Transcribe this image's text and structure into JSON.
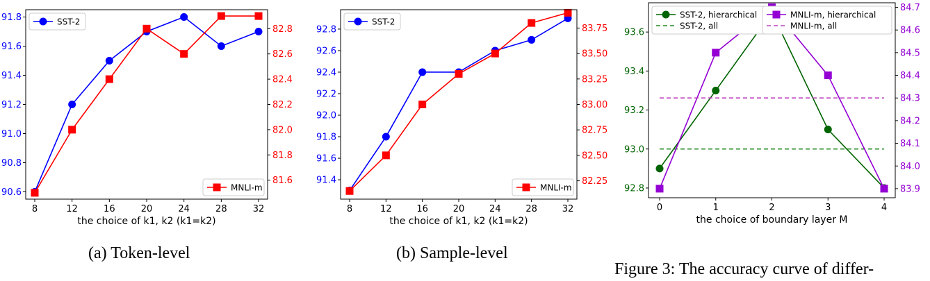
{
  "chart_data": [
    {
      "type": "line",
      "caption": "(a)  Token-level",
      "xlabel": "the choice of k1, k2 (k1=k2)",
      "x": [
        8,
        12,
        16,
        20,
        24,
        28,
        32
      ],
      "x_ticks": [
        "8",
        "12",
        "16",
        "20",
        "24",
        "28",
        "32"
      ],
      "y_left": {
        "lim": [
          90.55,
          91.85
        ],
        "ticks": [
          "90.6",
          "90.8",
          "91.0",
          "91.2",
          "91.4",
          "91.6",
          "91.8"
        ],
        "color": "#0000ff"
      },
      "y_right": {
        "lim": [
          81.45,
          82.95
        ],
        "ticks": [
          "81.6",
          "81.8",
          "82.0",
          "82.2",
          "82.4",
          "82.6",
          "82.8"
        ],
        "color": "#ff0000"
      },
      "series": [
        {
          "name": "SST-2",
          "axis": "left",
          "color": "#0000ff",
          "marker": "circle",
          "style": "solid",
          "values": [
            90.6,
            91.2,
            91.5,
            91.7,
            91.8,
            91.6,
            91.7
          ]
        },
        {
          "name": "MNLI-m",
          "axis": "right",
          "color": "#ff0000",
          "marker": "square",
          "style": "solid",
          "values": [
            81.5,
            82.0,
            82.4,
            82.8,
            82.6,
            82.9,
            82.9
          ]
        }
      ],
      "legends": [
        {
          "placement": "upper-left",
          "series": [
            "SST-2"
          ]
        },
        {
          "placement": "lower-right",
          "series": [
            "MNLI-m"
          ]
        }
      ]
    },
    {
      "type": "line",
      "caption": "(b)  Sample-level",
      "xlabel": "the choice of k1, k2 (k1=k2)",
      "x": [
        8,
        12,
        16,
        20,
        24,
        28,
        32
      ],
      "x_ticks": [
        "8",
        "12",
        "16",
        "20",
        "24",
        "28",
        "32"
      ],
      "y_left": {
        "lim": [
          91.22,
          92.98
        ],
        "ticks": [
          "91.4",
          "91.6",
          "91.8",
          "92.0",
          "92.2",
          "92.4",
          "92.6",
          "92.8"
        ],
        "color": "#0000ff"
      },
      "y_right": {
        "lim": [
          82.07,
          83.93
        ],
        "ticks": [
          "82.25",
          "82.50",
          "82.75",
          "83.00",
          "83.25",
          "83.50",
          "83.75"
        ],
        "color": "#ff0000"
      },
      "series": [
        {
          "name": "SST-2",
          "axis": "left",
          "color": "#0000ff",
          "marker": "circle",
          "style": "solid",
          "values": [
            91.3,
            91.8,
            92.4,
            92.4,
            92.6,
            92.7,
            92.9
          ]
        },
        {
          "name": "MNLI-m",
          "axis": "right",
          "color": "#ff0000",
          "marker": "square",
          "style": "solid",
          "values": [
            82.15,
            82.5,
            83.0,
            83.3,
            83.5,
            83.8,
            83.9
          ]
        }
      ],
      "legends": [
        {
          "placement": "upper-left",
          "series": [
            "SST-2"
          ]
        },
        {
          "placement": "lower-right",
          "series": [
            "MNLI-m"
          ]
        }
      ]
    },
    {
      "type": "line",
      "caption": "Figure 3: The accuracy curve of differ-",
      "xlabel": "the choice of boundary layer M",
      "x": [
        0,
        1,
        2,
        3,
        4
      ],
      "x_ticks": [
        "0",
        "1",
        "2",
        "3",
        "4"
      ],
      "y_left": {
        "lim": [
          92.75,
          93.75
        ],
        "ticks": [
          "92.8",
          "93.0",
          "93.2",
          "93.4",
          "93.6"
        ],
        "color": "#006400"
      },
      "y_right": {
        "lim": [
          83.86,
          84.72
        ],
        "ticks": [
          "83.9",
          "84.0",
          "84.1",
          "84.2",
          "84.3",
          "84.4",
          "84.5",
          "84.6",
          "84.7"
        ],
        "color": "#9400d3"
      },
      "series": [
        {
          "name": "SST-2, hierarchical",
          "axis": "left",
          "color": "#006400",
          "marker": "circle",
          "style": "solid",
          "values": [
            92.9,
            93.3,
            93.7,
            93.1,
            92.8
          ]
        },
        {
          "name": "SST-2, all",
          "axis": "left",
          "color": "#228b22",
          "marker": "none",
          "style": "dashed",
          "values": [
            93.0,
            93.0,
            93.0,
            93.0,
            93.0
          ]
        },
        {
          "name": "MNLI-m, hierarchical",
          "axis": "right",
          "color": "#9400d3",
          "marker": "square",
          "style": "solid",
          "values": [
            83.9,
            84.5,
            84.7,
            84.4,
            83.9
          ]
        },
        {
          "name": "MNLI-m, all",
          "axis": "right",
          "color": "#bf40bf",
          "marker": "none",
          "style": "dashed",
          "values": [
            84.3,
            84.3,
            84.3,
            84.3,
            84.3
          ]
        }
      ],
      "legends": [
        {
          "placement": "upper-left",
          "series": [
            "SST-2, hierarchical",
            "SST-2, all"
          ]
        },
        {
          "placement": "upper-right",
          "series": [
            "MNLI-m, hierarchical",
            "MNLI-m, all"
          ]
        }
      ]
    }
  ]
}
